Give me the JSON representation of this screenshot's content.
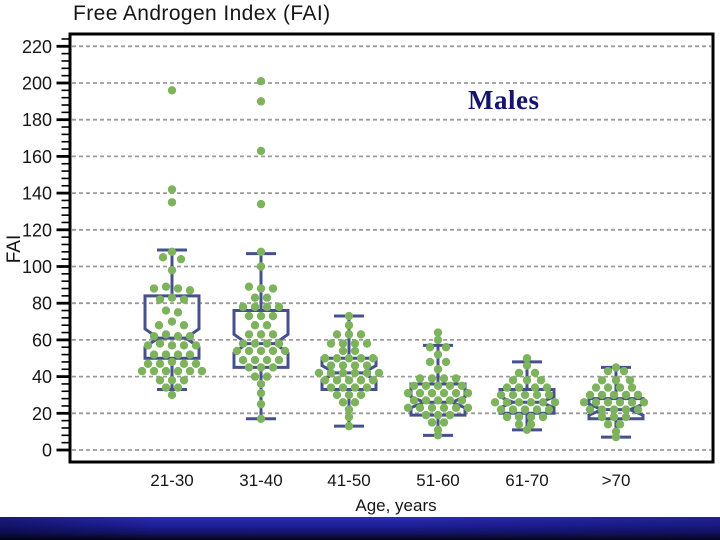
{
  "chart_data": {
    "type": "boxplot-beeswarm",
    "title": "Free Androgen Index (FAI)",
    "ylabel": "FAI",
    "xlabel": "Age, years",
    "annotation": {
      "text": "Males",
      "color": "#14146e"
    },
    "ylim": [
      0,
      227
    ],
    "yticks": [
      0,
      20,
      40,
      60,
      80,
      100,
      120,
      140,
      160,
      180,
      200,
      220
    ],
    "minor_tick_step": 4,
    "grid": "horizontal-dashed",
    "legend": null,
    "colors": {
      "points": "#7db35c",
      "box": "#46508c",
      "grid": "#9b9b9b",
      "frame": "#000000",
      "text": "#161616"
    },
    "categories": [
      "21-30",
      "31-40",
      "41-50",
      "51-60",
      "61-70",
      ">70"
    ],
    "groups": [
      {
        "category": "21-30",
        "box": {
          "whisker_low": 33,
          "q1": 50,
          "median": 61,
          "q3": 84,
          "whisker_high": 109,
          "notch": 5
        },
        "points": [
          [
            0,
            196
          ],
          [
            0,
            142
          ],
          [
            0,
            135
          ],
          [
            0,
            108
          ],
          [
            -9,
            105
          ],
          [
            9,
            104
          ],
          [
            0,
            98
          ],
          [
            -18,
            88
          ],
          [
            -6,
            89
          ],
          [
            6,
            88
          ],
          [
            18,
            87
          ],
          [
            -12,
            82
          ],
          [
            0,
            83
          ],
          [
            12,
            82
          ],
          [
            -6,
            76
          ],
          [
            6,
            75
          ],
          [
            0,
            70
          ],
          [
            -13,
            68
          ],
          [
            12,
            68
          ],
          [
            -18,
            62
          ],
          [
            -6,
            63
          ],
          [
            6,
            62
          ],
          [
            18,
            62
          ],
          [
            -24,
            57
          ],
          [
            -12,
            58
          ],
          [
            0,
            57
          ],
          [
            12,
            57
          ],
          [
            24,
            57
          ],
          [
            -18,
            52
          ],
          [
            -6,
            52
          ],
          [
            6,
            52
          ],
          [
            18,
            52
          ],
          [
            -24,
            47
          ],
          [
            -12,
            47
          ],
          [
            0,
            48
          ],
          [
            12,
            47
          ],
          [
            24,
            47
          ],
          [
            -30,
            43
          ],
          [
            -18,
            43
          ],
          [
            -6,
            43
          ],
          [
            6,
            43
          ],
          [
            18,
            43
          ],
          [
            30,
            43
          ],
          [
            -12,
            38
          ],
          [
            0,
            38
          ],
          [
            12,
            38
          ],
          [
            -6,
            34
          ],
          [
            6,
            34
          ],
          [
            0,
            30
          ]
        ]
      },
      {
        "category": "31-40",
        "box": {
          "whisker_low": 17,
          "q1": 45,
          "median": 58,
          "q3": 76,
          "whisker_high": 107,
          "notch": 5
        },
        "points": [
          [
            0,
            201
          ],
          [
            0,
            190
          ],
          [
            0,
            163
          ],
          [
            0,
            134
          ],
          [
            0,
            108
          ],
          [
            0,
            100
          ],
          [
            -12,
            89
          ],
          [
            0,
            88
          ],
          [
            12,
            88
          ],
          [
            -6,
            83
          ],
          [
            6,
            83
          ],
          [
            -18,
            78
          ],
          [
            -6,
            78
          ],
          [
            6,
            78
          ],
          [
            18,
            78
          ],
          [
            -12,
            73
          ],
          [
            0,
            73
          ],
          [
            12,
            73
          ],
          [
            -6,
            68
          ],
          [
            6,
            68
          ],
          [
            -12,
            63
          ],
          [
            0,
            63
          ],
          [
            12,
            63
          ],
          [
            -18,
            58
          ],
          [
            -6,
            58
          ],
          [
            6,
            58
          ],
          [
            18,
            58
          ],
          [
            -24,
            54
          ],
          [
            -12,
            54
          ],
          [
            0,
            54
          ],
          [
            12,
            54
          ],
          [
            24,
            54
          ],
          [
            -18,
            49
          ],
          [
            -6,
            49
          ],
          [
            6,
            49
          ],
          [
            18,
            49
          ],
          [
            -12,
            45
          ],
          [
            0,
            45
          ],
          [
            12,
            45
          ],
          [
            -6,
            40
          ],
          [
            6,
            40
          ],
          [
            0,
            36
          ],
          [
            0,
            31
          ],
          [
            0,
            25
          ],
          [
            0,
            17
          ]
        ]
      },
      {
        "category": "41-50",
        "box": {
          "whisker_low": 13,
          "q1": 33,
          "median": 42,
          "q3": 50,
          "whisker_high": 73,
          "notch": 4
        },
        "points": [
          [
            0,
            73
          ],
          [
            0,
            68
          ],
          [
            -12,
            63
          ],
          [
            0,
            63
          ],
          [
            12,
            63
          ],
          [
            -18,
            58
          ],
          [
            -6,
            58
          ],
          [
            6,
            58
          ],
          [
            18,
            58
          ],
          [
            -6,
            54
          ],
          [
            6,
            54
          ],
          [
            -24,
            50
          ],
          [
            -12,
            50
          ],
          [
            0,
            50
          ],
          [
            12,
            50
          ],
          [
            24,
            50
          ],
          [
            -18,
            46
          ],
          [
            -6,
            46
          ],
          [
            6,
            46
          ],
          [
            18,
            46
          ],
          [
            -30,
            42
          ],
          [
            -18,
            42
          ],
          [
            -6,
            42
          ],
          [
            6,
            42
          ],
          [
            18,
            42
          ],
          [
            30,
            42
          ],
          [
            -24,
            38
          ],
          [
            -12,
            38
          ],
          [
            0,
            38
          ],
          [
            12,
            38
          ],
          [
            24,
            38
          ],
          [
            -18,
            34
          ],
          [
            -6,
            34
          ],
          [
            6,
            34
          ],
          [
            18,
            34
          ],
          [
            -12,
            30
          ],
          [
            0,
            30
          ],
          [
            12,
            30
          ],
          [
            -6,
            26
          ],
          [
            6,
            26
          ],
          [
            0,
            22
          ],
          [
            0,
            18
          ],
          [
            0,
            13
          ]
        ]
      },
      {
        "category": "51-60",
        "box": {
          "whisker_low": 8,
          "q1": 19,
          "median": 26,
          "q3": 36,
          "whisker_high": 57,
          "notch": 3
        },
        "points": [
          [
            0,
            64
          ],
          [
            0,
            60
          ],
          [
            -8,
            56
          ],
          [
            8,
            56
          ],
          [
            0,
            52
          ],
          [
            -8,
            48
          ],
          [
            8,
            48
          ],
          [
            0,
            44
          ],
          [
            -18,
            39
          ],
          [
            -6,
            39
          ],
          [
            6,
            39
          ],
          [
            18,
            39
          ],
          [
            -24,
            35
          ],
          [
            -12,
            35
          ],
          [
            0,
            35
          ],
          [
            12,
            35
          ],
          [
            24,
            35
          ],
          [
            -30,
            31
          ],
          [
            -18,
            31
          ],
          [
            -6,
            31
          ],
          [
            6,
            31
          ],
          [
            18,
            31
          ],
          [
            30,
            31
          ],
          [
            -24,
            27
          ],
          [
            -12,
            27
          ],
          [
            0,
            27
          ],
          [
            12,
            27
          ],
          [
            24,
            27
          ],
          [
            -30,
            23
          ],
          [
            -18,
            23
          ],
          [
            -6,
            23
          ],
          [
            6,
            23
          ],
          [
            18,
            23
          ],
          [
            30,
            23
          ],
          [
            -12,
            19
          ],
          [
            0,
            19
          ],
          [
            12,
            19
          ],
          [
            -6,
            15
          ],
          [
            6,
            15
          ],
          [
            0,
            11
          ],
          [
            0,
            8
          ]
        ]
      },
      {
        "category": "61-70",
        "box": {
          "whisker_low": 11,
          "q1": 20,
          "median": 26,
          "q3": 33,
          "whisker_high": 48,
          "notch": 3
        },
        "points": [
          [
            0,
            50
          ],
          [
            0,
            46
          ],
          [
            -8,
            42
          ],
          [
            8,
            42
          ],
          [
            -14,
            38
          ],
          [
            0,
            38
          ],
          [
            14,
            38
          ],
          [
            -20,
            34
          ],
          [
            -8,
            34
          ],
          [
            8,
            34
          ],
          [
            20,
            34
          ],
          [
            -26,
            30
          ],
          [
            -14,
            30
          ],
          [
            -2,
            30
          ],
          [
            10,
            30
          ],
          [
            22,
            30
          ],
          [
            -32,
            26
          ],
          [
            -20,
            26
          ],
          [
            -8,
            26
          ],
          [
            4,
            26
          ],
          [
            16,
            26
          ],
          [
            28,
            26
          ],
          [
            -26,
            22
          ],
          [
            -14,
            22
          ],
          [
            -2,
            22
          ],
          [
            10,
            22
          ],
          [
            22,
            22
          ],
          [
            -20,
            18
          ],
          [
            -8,
            18
          ],
          [
            4,
            18
          ],
          [
            16,
            18
          ],
          [
            -8,
            14
          ],
          [
            4,
            14
          ],
          [
            0,
            11
          ]
        ]
      },
      {
        "category": ">70",
        "box": {
          "whisker_low": 7,
          "q1": 17,
          "median": 22,
          "q3": 28,
          "whisker_high": 45,
          "notch": 3
        },
        "points": [
          [
            0,
            45
          ],
          [
            -8,
            43
          ],
          [
            8,
            43
          ],
          [
            -14,
            38
          ],
          [
            0,
            38
          ],
          [
            14,
            38
          ],
          [
            -20,
            34
          ],
          [
            -8,
            34
          ],
          [
            4,
            34
          ],
          [
            16,
            34
          ],
          [
            -26,
            30
          ],
          [
            -14,
            30
          ],
          [
            -2,
            30
          ],
          [
            10,
            30
          ],
          [
            22,
            30
          ],
          [
            -32,
            26
          ],
          [
            -20,
            26
          ],
          [
            -8,
            26
          ],
          [
            4,
            26
          ],
          [
            16,
            26
          ],
          [
            28,
            26
          ],
          [
            -26,
            22
          ],
          [
            -14,
            22
          ],
          [
            -2,
            22
          ],
          [
            10,
            22
          ],
          [
            22,
            22
          ],
          [
            -14,
            18
          ],
          [
            -2,
            18
          ],
          [
            10,
            18
          ],
          [
            -8,
            14
          ],
          [
            4,
            14
          ],
          [
            0,
            10
          ],
          [
            0,
            7
          ]
        ]
      }
    ]
  },
  "footer": {
    "colors": [
      "#2c2cb2",
      "#1c1c94",
      "#03030f"
    ]
  }
}
